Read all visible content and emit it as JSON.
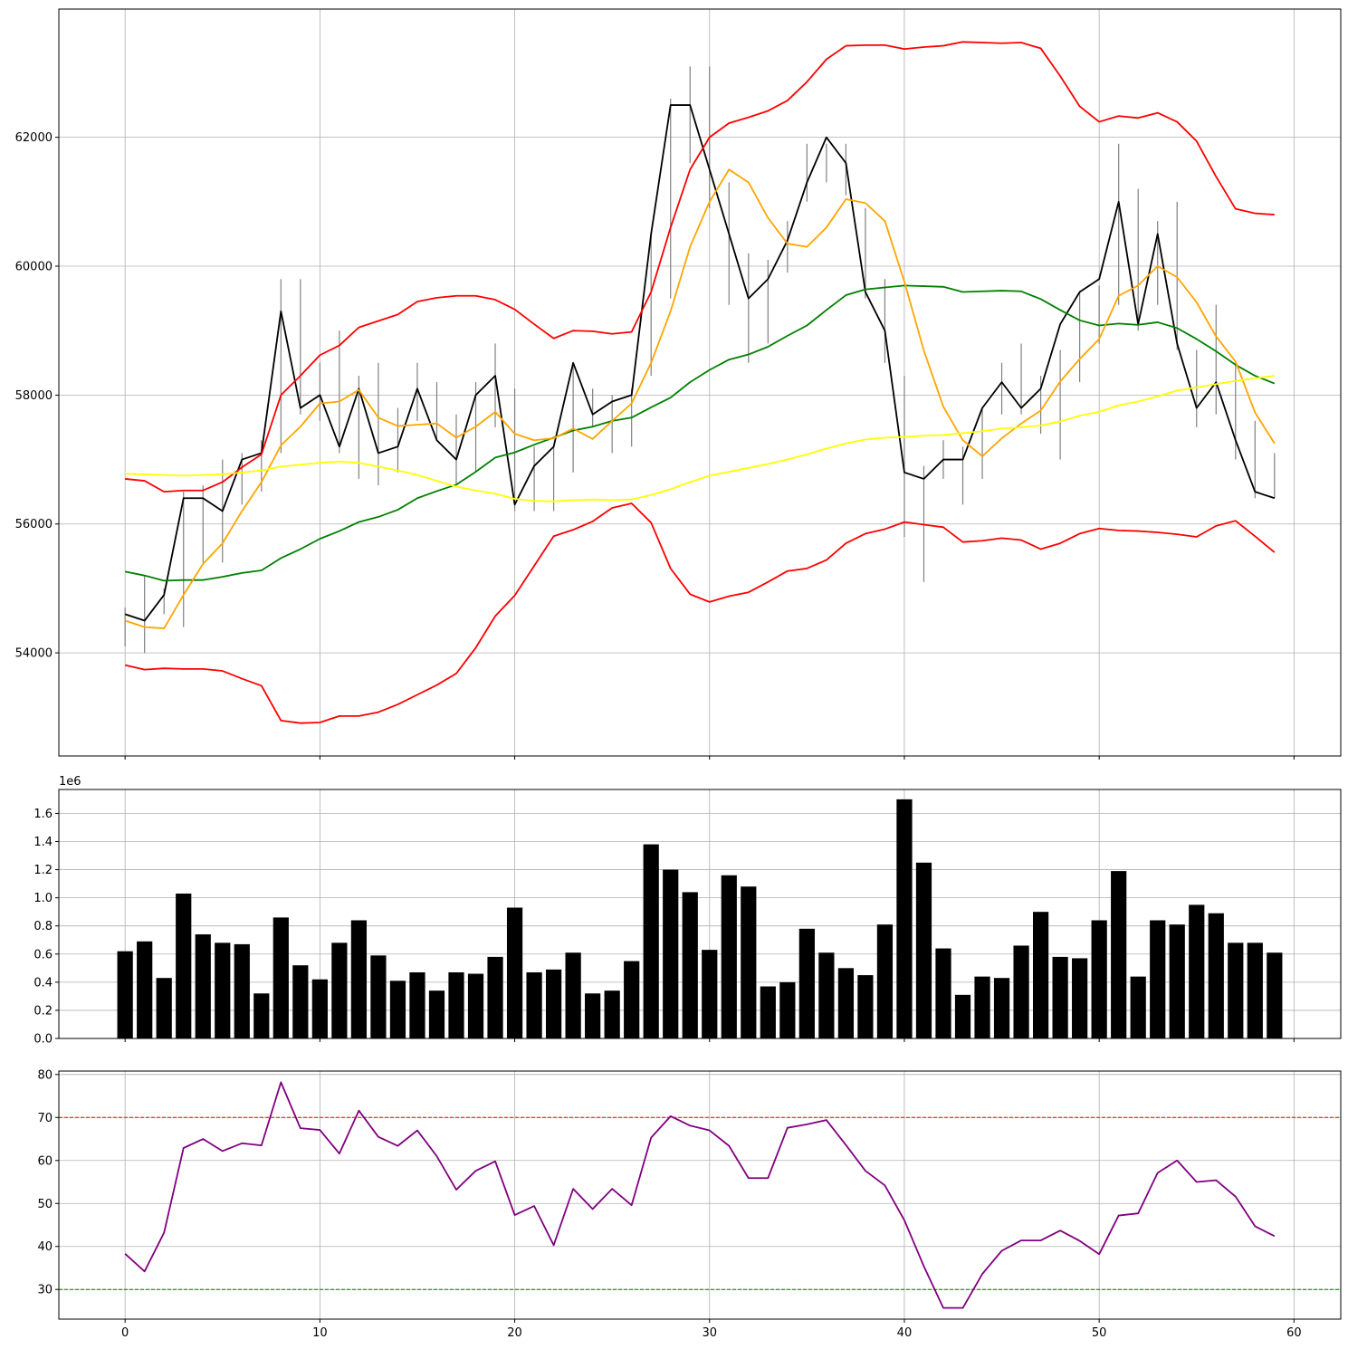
{
  "chart_data": [
    {
      "type": "line",
      "panel": "price",
      "x": [
        0,
        1,
        2,
        3,
        4,
        5,
        6,
        7,
        8,
        9,
        10,
        11,
        12,
        13,
        14,
        15,
        16,
        17,
        18,
        19,
        20,
        21,
        22,
        23,
        24,
        25,
        26,
        27,
        28,
        29,
        30,
        31,
        32,
        33,
        34,
        35,
        36,
        37,
        38,
        39,
        40,
        41,
        42,
        43,
        44,
        45,
        46,
        47,
        48,
        49,
        50,
        51,
        52,
        53,
        54,
        55,
        56,
        57,
        58,
        59
      ],
      "xlim": [
        -3.4,
        62.4
      ],
      "ylim": [
        52400,
        63990
      ],
      "xticks": [
        0,
        10,
        20,
        30,
        40,
        50,
        60
      ],
      "xtick_labels_visible": false,
      "yticks": [
        54000,
        56000,
        58000,
        60000,
        62000
      ],
      "grid": true,
      "high_low": {
        "color": "#808080",
        "high": [
          54700,
          55200,
          55000,
          56500,
          56600,
          57000,
          57100,
          57300,
          59800,
          59800,
          58500,
          59000,
          58300,
          58500,
          57800,
          58500,
          58200,
          57700,
          58200,
          58800,
          58100,
          57200,
          57200,
          58500,
          58100,
          58000,
          58100,
          60500,
          62600,
          63100,
          63100,
          61300,
          60200,
          60100,
          60700,
          61900,
          61900,
          61900,
          60900,
          59800,
          58300,
          56900,
          57300,
          57200,
          57800,
          58500,
          58800,
          58300,
          58700,
          59600,
          59700,
          61900,
          61200,
          60700,
          61000,
          58700,
          59400,
          58500,
          57600,
          57100
        ],
        "low": [
          54100,
          54000,
          54600,
          54400,
          55400,
          55400,
          56300,
          56500,
          57100,
          57700,
          57600,
          57100,
          56700,
          56600,
          56800,
          57600,
          57300,
          56600,
          56800,
          57500,
          56200,
          56200,
          56200,
          56800,
          57500,
          57100,
          57200,
          58300,
          59500,
          61600,
          60900,
          59400,
          58500,
          58800,
          59900,
          61000,
          61300,
          61100,
          59500,
          58500,
          55800,
          55100,
          56700,
          56300,
          56700,
          57700,
          57700,
          57400,
          57000,
          58200,
          58800,
          59400,
          59000,
          59400,
          58700,
          57500,
          57700,
          57000,
          56400,
          56400
        ]
      },
      "series": [
        {
          "role": "close",
          "color": "#000000",
          "values": [
            54600,
            54500,
            54900,
            56400,
            56400,
            56200,
            57000,
            57100,
            59300,
            57800,
            58000,
            57200,
            58100,
            57100,
            57200,
            58100,
            57300,
            57000,
            58000,
            58300,
            56300,
            56900,
            57200,
            58500,
            57700,
            57900,
            58000,
            60500,
            62500,
            62500,
            61500,
            60500,
            59500,
            59800,
            60400,
            61300,
            62000,
            61600,
            59600,
            59000,
            56800,
            56700,
            57000,
            57000,
            57800,
            58200,
            57800,
            58100,
            59100,
            59600,
            59800,
            61000,
            59100,
            60500,
            58800,
            57800,
            58200,
            57300,
            56500,
            56400
          ]
        },
        {
          "role": "bb-upper",
          "color": "#ff0000",
          "values": [
            56700,
            56670,
            56500,
            56520,
            56520,
            56650,
            56880,
            57080,
            58000,
            58300,
            58620,
            58770,
            59050,
            59150,
            59250,
            59450,
            59510,
            59540,
            59540,
            59480,
            59330,
            59100,
            58880,
            59000,
            58990,
            58950,
            58980,
            59600,
            60600,
            61500,
            62000,
            62220,
            62310,
            62410,
            62570,
            62860,
            63210,
            63420,
            63430,
            63430,
            63370,
            63400,
            63420,
            63480,
            63470,
            63460,
            63470,
            63380,
            62950,
            62480,
            62240,
            62330,
            62300,
            62380,
            62240,
            61940,
            61390,
            60890,
            60820,
            60800
          ]
        },
        {
          "role": "bb-lower",
          "color": "#ff0000",
          "values": [
            53810,
            53740,
            53760,
            53750,
            53750,
            53720,
            53600,
            53490,
            52950,
            52910,
            52920,
            53020,
            53020,
            53080,
            53200,
            53350,
            53500,
            53680,
            54080,
            54570,
            54890,
            55350,
            55810,
            55910,
            56040,
            56250,
            56320,
            56020,
            55310,
            54910,
            54790,
            54880,
            54940,
            55100,
            55270,
            55310,
            55440,
            55700,
            55850,
            55920,
            56030,
            55990,
            55950,
            55720,
            55740,
            55780,
            55750,
            55610,
            55700,
            55850,
            55930,
            55900,
            55890,
            55870,
            55840,
            55800,
            55970,
            56050,
            55810,
            55560
          ]
        },
        {
          "role": "bb-middle",
          "color": "#008000",
          "values": [
            55260,
            55200,
            55120,
            55130,
            55130,
            55180,
            55240,
            55280,
            55470,
            55610,
            55770,
            55890,
            56030,
            56110,
            56220,
            56400,
            56510,
            56610,
            56810,
            57030,
            57110,
            57230,
            57340,
            57450,
            57510,
            57600,
            57650,
            57810,
            57960,
            58200,
            58390,
            58550,
            58630,
            58750,
            58920,
            59080,
            59320,
            59550,
            59640,
            59670,
            59700,
            59690,
            59680,
            59600,
            59610,
            59620,
            59610,
            59490,
            59320,
            59160,
            59080,
            59110,
            59090,
            59130,
            59040,
            58870,
            58680,
            58470,
            58300,
            58180
          ]
        },
        {
          "role": "ema-short",
          "color": "#ffa500",
          "values": [
            54500,
            54400,
            54380,
            54900,
            55380,
            55700,
            56200,
            56650,
            57220,
            57510,
            57870,
            57900,
            58080,
            57650,
            57520,
            57540,
            57560,
            57340,
            57510,
            57740,
            57400,
            57300,
            57330,
            57480,
            57320,
            57600,
            57870,
            58500,
            59300,
            60300,
            61000,
            61500,
            61300,
            60750,
            60350,
            60300,
            60600,
            61040,
            60980,
            60700,
            59760,
            58690,
            57820,
            57300,
            57050,
            57330,
            57560,
            57760,
            58210,
            58560,
            58870,
            59540,
            59700,
            60000,
            59830,
            59440,
            58910,
            58520,
            57730,
            57250
          ]
        },
        {
          "role": "ema-long",
          "color": "#ffff00",
          "values": [
            56780,
            56770,
            56760,
            56750,
            56760,
            56770,
            56800,
            56830,
            56890,
            56920,
            56950,
            56970,
            56950,
            56890,
            56830,
            56760,
            56670,
            56580,
            56520,
            56470,
            56390,
            56360,
            56350,
            56370,
            56380,
            56370,
            56380,
            56450,
            56540,
            56650,
            56750,
            56810,
            56870,
            56930,
            57000,
            57080,
            57170,
            57250,
            57310,
            57340,
            57350,
            57370,
            57380,
            57410,
            57440,
            57480,
            57500,
            57530,
            57590,
            57680,
            57740,
            57840,
            57900,
            57980,
            58070,
            58120,
            58170,
            58220,
            58260,
            58300
          ]
        }
      ]
    },
    {
      "type": "bar",
      "panel": "volume",
      "color": "#000000",
      "x": [
        0,
        1,
        2,
        3,
        4,
        5,
        6,
        7,
        8,
        9,
        10,
        11,
        12,
        13,
        14,
        15,
        16,
        17,
        18,
        19,
        20,
        21,
        22,
        23,
        24,
        25,
        26,
        27,
        28,
        29,
        30,
        31,
        32,
        33,
        34,
        35,
        36,
        37,
        38,
        39,
        40,
        41,
        42,
        43,
        44,
        45,
        46,
        47,
        48,
        49,
        50,
        51,
        52,
        53,
        54,
        55,
        56,
        57,
        58,
        59
      ],
      "values": [
        0.62,
        0.69,
        0.43,
        1.03,
        0.74,
        0.68,
        0.67,
        0.32,
        0.86,
        0.52,
        0.42,
        0.68,
        0.84,
        0.59,
        0.41,
        0.47,
        0.34,
        0.47,
        0.46,
        0.58,
        0.93,
        0.47,
        0.49,
        0.61,
        0.32,
        0.34,
        0.55,
        1.38,
        1.2,
        1.04,
        0.63,
        1.16,
        1.08,
        0.37,
        0.4,
        0.78,
        0.61,
        0.5,
        0.45,
        0.81,
        1.7,
        1.25,
        0.64,
        0.31,
        0.44,
        0.43,
        0.66,
        0.9,
        0.58,
        0.57,
        0.84,
        1.19,
        0.44,
        0.84,
        0.81,
        0.95,
        0.89,
        0.68,
        0.68,
        0.61
      ],
      "scale_label": "1e6",
      "xlim": [
        -3.4,
        62.4
      ],
      "ylim": [
        0,
        1.77
      ],
      "xticks": [
        0,
        10,
        20,
        30,
        40,
        50,
        60
      ],
      "xtick_labels_visible": false,
      "yticks": [
        0.0,
        0.2,
        0.4,
        0.6,
        0.8,
        1.0,
        1.2,
        1.4,
        1.6
      ],
      "ytick_labels": [
        "0.0",
        "0.2",
        "0.4",
        "0.6",
        "0.8",
        "1.0",
        "1.2",
        "1.4",
        "1.6"
      ],
      "grid": true
    },
    {
      "type": "line",
      "panel": "rsi",
      "x": [
        0,
        1,
        2,
        3,
        4,
        5,
        6,
        7,
        8,
        9,
        10,
        11,
        12,
        13,
        14,
        15,
        16,
        17,
        18,
        19,
        20,
        21,
        22,
        23,
        24,
        25,
        26,
        27,
        28,
        29,
        30,
        31,
        32,
        33,
        34,
        35,
        36,
        37,
        38,
        39,
        40,
        41,
        42,
        43,
        44,
        45,
        46,
        47,
        48,
        49,
        50,
        51,
        52,
        53,
        54,
        55,
        56,
        57,
        58,
        59
      ],
      "series": [
        {
          "role": "rsi",
          "color": "#800080",
          "values": [
            38.3,
            34.2,
            43.2,
            62.9,
            65.0,
            62.2,
            64.0,
            63.5,
            78.2,
            67.5,
            67.1,
            61.6,
            71.6,
            65.5,
            63.4,
            67.0,
            61.0,
            53.2,
            57.6,
            59.8,
            47.3,
            49.4,
            40.3,
            53.4,
            48.7,
            53.4,
            49.6,
            65.3,
            70.3,
            68.1,
            67.0,
            63.4,
            55.9,
            55.9,
            67.6,
            68.4,
            69.4,
            63.6,
            57.6,
            54.2,
            46.1,
            35.4,
            25.7,
            25.7,
            33.6,
            39.0,
            41.4,
            41.4,
            43.7,
            41.3,
            38.2,
            47.2,
            47.7,
            57.1,
            60.0,
            55.0,
            55.4,
            51.6,
            44.7,
            42.4
          ]
        }
      ],
      "reference_lines": [
        {
          "value": 70,
          "color": "#ff0000",
          "style": "dashed"
        },
        {
          "value": 30,
          "color": "#008000",
          "style": "dashed"
        }
      ],
      "xlim": [
        -3.4,
        62.4
      ],
      "ylim": [
        23.1,
        80.8
      ],
      "xticks": [
        0,
        10,
        20,
        30,
        40,
        50,
        60
      ],
      "xtick_labels": [
        "0",
        "10",
        "20",
        "30",
        "40",
        "50",
        "60"
      ],
      "yticks": [
        30,
        40,
        50,
        60,
        70,
        80
      ],
      "grid": true
    }
  ]
}
